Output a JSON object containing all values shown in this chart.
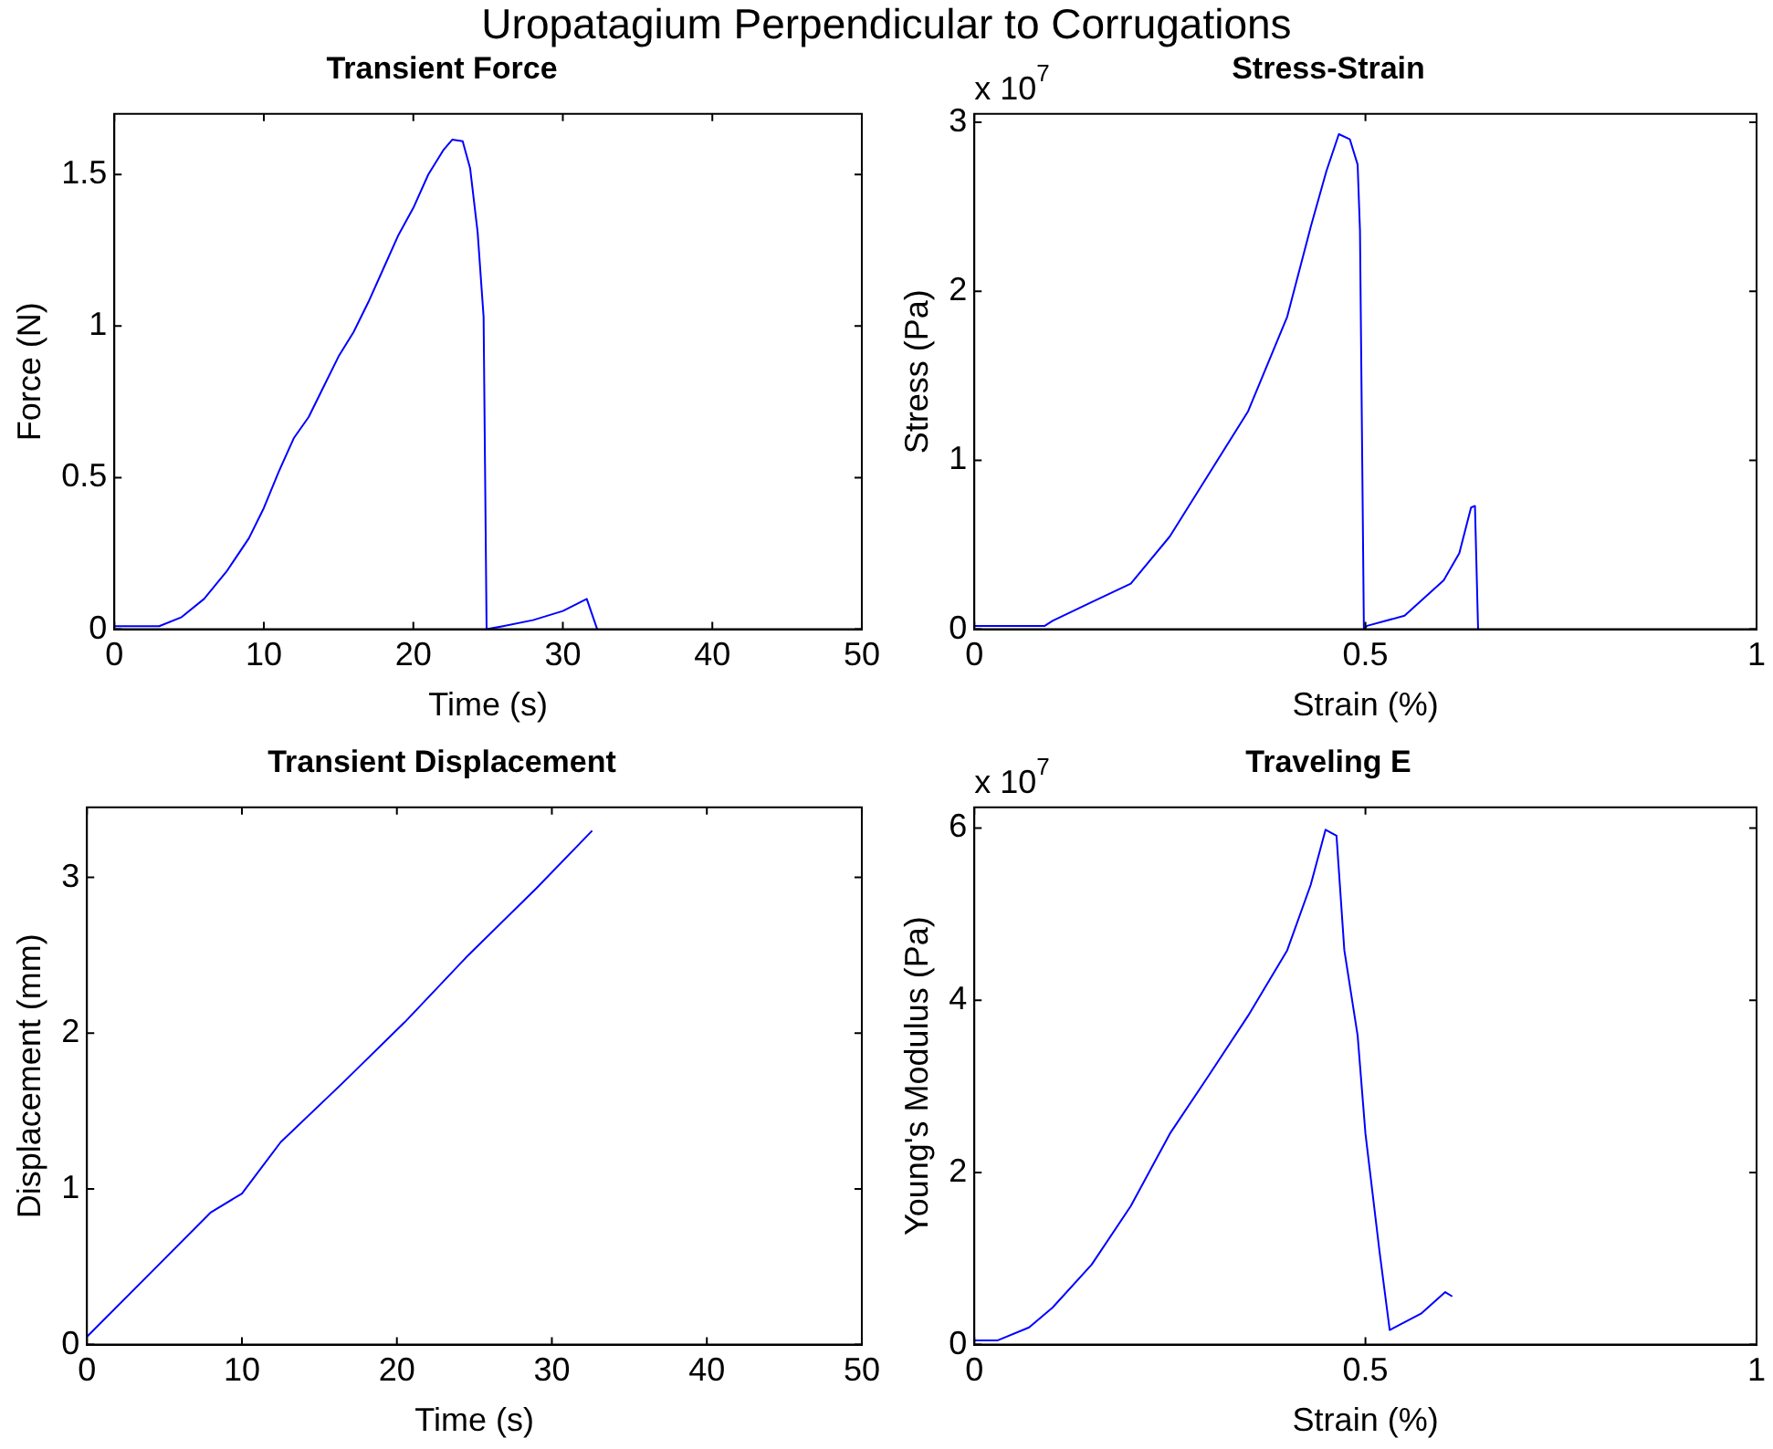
{
  "chart_data": [
    {
      "type": "line",
      "title": "Transient Force",
      "xlabel": "Time (s)",
      "ylabel": "Force (N)",
      "annotations": [
        "Uropatagium Perpendicular to Corrugations"
      ],
      "xlim": [
        0,
        50
      ],
      "xticks": [
        0,
        10,
        20,
        30,
        40,
        50
      ],
      "ylim": [
        0,
        1.7
      ],
      "yticks": [
        0,
        0.5,
        1,
        1.5
      ],
      "marker": "none",
      "line_style": "solid",
      "series": [
        {
          "color": "#0000ff",
          "x": [
            0,
            3,
            4.5,
            6,
            7.5,
            9,
            10,
            11,
            12,
            13,
            14,
            15,
            16,
            17,
            18,
            19,
            20,
            21,
            22,
            22.6,
            23.3,
            23.8,
            24.3,
            24.7,
            24.9,
            26,
            28,
            30,
            31.6,
            32.3
          ],
          "values": [
            0.01,
            0.01,
            0.04,
            0.1,
            0.19,
            0.3,
            0.4,
            0.52,
            0.63,
            0.7,
            0.8,
            0.9,
            0.98,
            1.08,
            1.19,
            1.3,
            1.39,
            1.5,
            1.58,
            1.615,
            1.61,
            1.52,
            1.31,
            1.03,
            0,
            0.01,
            0.03,
            0.06,
            0.1,
            0
          ]
        }
      ]
    },
    {
      "type": "line",
      "title": "Stress-Strain",
      "xlabel": "Strain (%)",
      "ylabel": "Stress (Pa)",
      "annotations": [
        "x 10$^{7}$"
      ],
      "xlim": [
        0,
        1
      ],
      "xticks": [
        0,
        0.5,
        1
      ],
      "ylim": [
        0,
        3.05
      ],
      "yticks": [
        0,
        1,
        2,
        3
      ],
      "marker": "none",
      "line_style": "solid",
      "series": [
        {
          "color": "#0000ff",
          "x": [
            0,
            0.09,
            0.1,
            0.15,
            0.2,
            0.25,
            0.3,
            0.35,
            0.4,
            0.43,
            0.45,
            0.466,
            0.48,
            0.49,
            0.493,
            0.498,
            0.502,
            0.55,
            0.6,
            0.62,
            0.635,
            0.64,
            0.644
          ],
          "values": [
            0.02,
            0.02,
            0.05,
            0.16,
            0.27,
            0.55,
            0.92,
            1.29,
            1.85,
            2.38,
            2.71,
            2.93,
            2.9,
            2.75,
            2.36,
            0,
            0.02,
            0.08,
            0.29,
            0.45,
            0.72,
            0.73,
            0
          ]
        }
      ]
    },
    {
      "type": "line",
      "title": "Transient Displacement",
      "xlabel": "Time (s)",
      "ylabel": "Displacement (mm)",
      "xlim": [
        0,
        50
      ],
      "xticks": [
        0,
        10,
        20,
        30,
        40,
        50
      ],
      "ylim": [
        0,
        3.45
      ],
      "yticks": [
        0,
        1,
        2,
        3
      ],
      "marker": "none",
      "line_style": "solid",
      "series": [
        {
          "color": "#0000ff",
          "x": [
            0,
            4.1,
            8,
            10,
            12.5,
            16.5,
            20.5,
            24.6,
            29,
            32.6
          ],
          "values": [
            0.05,
            0.46,
            0.85,
            0.97,
            1.3,
            1.68,
            2.07,
            2.5,
            2.93,
            3.3
          ]
        }
      ]
    },
    {
      "type": "line",
      "title": "Traveling E",
      "xlabel": "Strain (%)",
      "ylabel": "Young's Modulus (Pa)",
      "annotations": [
        "x 10$^{7}$"
      ],
      "xlim": [
        0,
        1
      ],
      "xticks": [
        0,
        0.5,
        1
      ],
      "ylim": [
        0,
        6.24
      ],
      "yticks": [
        0,
        2,
        4,
        6
      ],
      "marker": "none",
      "line_style": "solid",
      "series": [
        {
          "color": "#0000ff",
          "x": [
            0,
            0.03,
            0.07,
            0.1,
            0.15,
            0.2,
            0.25,
            0.3,
            0.35,
            0.4,
            0.43,
            0.449,
            0.463,
            0.473,
            0.49,
            0.5,
            0.518,
            0.531,
            0.571,
            0.602,
            0.611
          ],
          "values": [
            0.05,
            0.05,
            0.2,
            0.43,
            0.93,
            1.61,
            2.45,
            3.13,
            3.82,
            4.58,
            5.34,
            5.98,
            5.91,
            4.58,
            3.59,
            2.45,
            1.08,
            0.17,
            0.36,
            0.61,
            0.56
          ]
        }
      ]
    }
  ]
}
